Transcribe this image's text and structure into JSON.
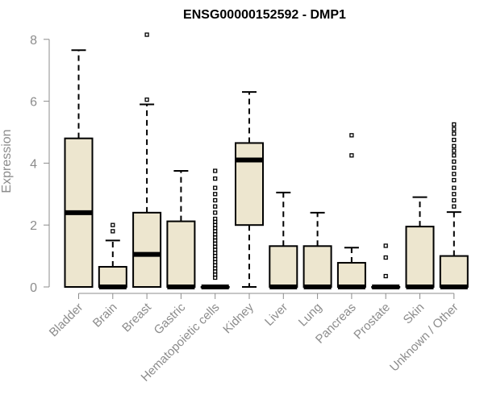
{
  "chart_data": {
    "type": "boxplot",
    "title": "ENSG00000152592 - DMP1",
    "ylabel": "Expression",
    "xlabel": "",
    "ylim": [
      0,
      8.2
    ],
    "yticks": [
      0,
      2,
      4,
      6,
      8
    ],
    "grid": false,
    "colors": {
      "box_fill": "#ede6cf",
      "stroke": "#000000",
      "axis_text": "#8c8c8c"
    },
    "categories": [
      "Bladder",
      "Brain",
      "Breast",
      "Gastric",
      "Hematopoietic cells",
      "Kidney",
      "Liver",
      "Lung",
      "Pancreas",
      "Prostate",
      "Skin",
      "Unknown / Other"
    ],
    "boxes": [
      {
        "category": "Bladder",
        "whisker_low": 0,
        "q1": 0,
        "median": 2.4,
        "q3": 4.8,
        "whisker_high": 7.65,
        "outliers": []
      },
      {
        "category": "Brain",
        "whisker_low": 0,
        "q1": 0,
        "median": 0,
        "q3": 0.65,
        "whisker_high": 1.5,
        "outliers": [
          1.8,
          2.0
        ]
      },
      {
        "category": "Breast",
        "whisker_low": 0,
        "q1": 0,
        "median": 1.05,
        "q3": 2.4,
        "whisker_high": 5.9,
        "outliers": [
          6.05,
          8.15
        ]
      },
      {
        "category": "Gastric",
        "whisker_low": 0,
        "q1": 0,
        "median": 0,
        "q3": 2.12,
        "whisker_high": 3.75,
        "outliers": []
      },
      {
        "category": "Hematopoietic cells",
        "whisker_low": 0,
        "q1": 0,
        "median": 0,
        "q3": 0,
        "whisker_high": 0,
        "outliers": [
          0.3,
          0.4,
          0.5,
          0.6,
          0.7,
          0.8,
          0.9,
          1.0,
          1.1,
          1.2,
          1.3,
          1.4,
          1.5,
          1.6,
          1.7,
          1.8,
          1.9,
          2.0,
          2.1,
          2.2,
          2.4,
          2.6,
          2.8,
          3.0,
          3.2,
          3.5,
          3.75
        ]
      },
      {
        "category": "Kidney",
        "whisker_low": 0,
        "q1": 2.0,
        "median": 4.1,
        "q3": 4.65,
        "whisker_high": 6.3,
        "outliers": []
      },
      {
        "category": "Liver",
        "whisker_low": 0,
        "q1": 0,
        "median": 0,
        "q3": 1.32,
        "whisker_high": 3.05,
        "outliers": []
      },
      {
        "category": "Lung",
        "whisker_low": 0,
        "q1": 0,
        "median": 0,
        "q3": 1.32,
        "whisker_high": 2.4,
        "outliers": []
      },
      {
        "category": "Pancreas",
        "whisker_low": 0,
        "q1": 0,
        "median": 0,
        "q3": 0.78,
        "whisker_high": 1.27,
        "outliers": [
          4.25,
          4.9
        ]
      },
      {
        "category": "Prostate",
        "whisker_low": 0,
        "q1": 0,
        "median": 0,
        "q3": 0,
        "whisker_high": 0,
        "outliers": [
          0.35,
          0.95,
          1.33
        ]
      },
      {
        "category": "Skin",
        "whisker_low": 0,
        "q1": 0,
        "median": 0,
        "q3": 1.95,
        "whisker_high": 2.9,
        "outliers": []
      },
      {
        "category": "Unknown / Other",
        "whisker_low": 0,
        "q1": 0,
        "median": 0,
        "q3": 1.0,
        "whisker_high": 2.42,
        "outliers": [
          2.6,
          2.8,
          3.0,
          3.2,
          3.45,
          3.65,
          3.85,
          4.05,
          4.25,
          4.4,
          4.55,
          4.75,
          4.95,
          5.1,
          5.25
        ]
      }
    ]
  }
}
